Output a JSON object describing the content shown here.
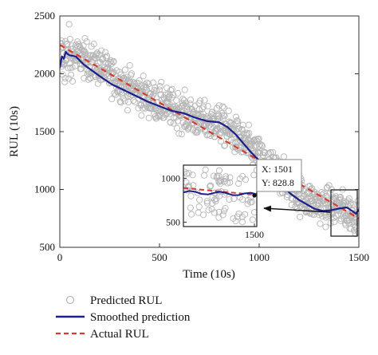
{
  "chart_data": {
    "type": "line",
    "xlabel": "Time (10s)",
    "ylabel": "RUL (10s)",
    "xlim": [
      0,
      1500
    ],
    "ylim": [
      500,
      2500
    ],
    "x_ticks": [
      0,
      500,
      1000,
      1500
    ],
    "y_ticks": [
      500,
      1000,
      1500,
      2000,
      2500
    ],
    "grid": false,
    "legend_position": "below",
    "series": [
      {
        "name": "Predicted RUL",
        "kind": "scatter",
        "marker": "hollow-circle",
        "color": "#b5b5b5",
        "trend_x": [
          0,
          100,
          200,
          300,
          400,
          500,
          600,
          700,
          800,
          900,
          1000,
          1100,
          1200,
          1300,
          1400,
          1500
        ],
        "trend_y": [
          2130,
          2150,
          2060,
          1930,
          1830,
          1740,
          1680,
          1600,
          1570,
          1440,
          1280,
          1130,
          950,
          870,
          840,
          760
        ],
        "scatter_spread": 160
      },
      {
        "name": "Smoothed prediction",
        "kind": "line",
        "color": "#1c1e8c",
        "x": [
          0,
          10,
          20,
          30,
          40,
          50,
          80,
          120,
          160,
          200,
          260,
          320,
          380,
          440,
          500,
          560,
          620,
          680,
          740,
          800,
          840,
          880,
          920,
          960,
          1000,
          1040,
          1080,
          1120,
          1160,
          1200,
          1240,
          1280,
          1320,
          1360,
          1400,
          1440,
          1470,
          1485,
          1501
        ],
        "y": [
          2050,
          2150,
          2130,
          2190,
          2170,
          2160,
          2150,
          2080,
          2030,
          1980,
          1910,
          1860,
          1810,
          1760,
          1720,
          1680,
          1660,
          1620,
          1590,
          1580,
          1540,
          1480,
          1400,
          1320,
          1250,
          1170,
          1100,
          1020,
          960,
          910,
          870,
          830,
          815,
          820,
          835,
          845,
          810,
          790,
          828.8
        ]
      },
      {
        "name": "Actual RUL",
        "kind": "line",
        "style": "dashed",
        "color": "#d93a2b",
        "x": [
          0,
          1500
        ],
        "y": [
          2250,
          750
        ]
      }
    ],
    "inset": {
      "x_ticks": [
        1500
      ],
      "y_ticks": [
        500,
        1000
      ],
      "ylim": [
        450,
        1150
      ],
      "zoom_region": {
        "x": [
          1380,
          1500
        ],
        "y": [
          450,
          1150
        ]
      }
    },
    "datatip": {
      "x": 1501,
      "y": 828.8,
      "x_text": "X: 1501",
      "y_text": "Y: 828.8"
    }
  }
}
